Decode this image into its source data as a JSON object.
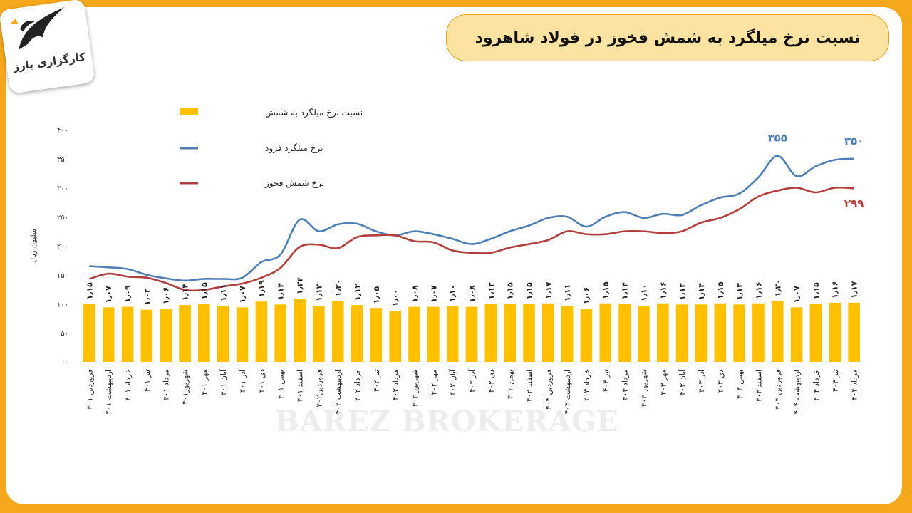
{
  "title": "نسبت نرخ میلگرد به شمش فخوز در فولاد شاهرود",
  "logo_text": "کارگزاری بارز",
  "watermark": "BAREZ BROKERAGE",
  "colors": {
    "bar": "#ffc000",
    "line_rebar": "#4e7fb5",
    "line_billet": "#b23f3c",
    "background": "#f6a81c",
    "title_box": "#fde3a2"
  },
  "chart_data": {
    "type": "bar",
    "title": "نسبت نرخ میلگرد به شمش فخوز در فولاد شاهرود",
    "ylabel": "میلیون ریال",
    "ylim": [
      0,
      400
    ],
    "yticks": [
      "۰",
      "۵۰",
      "۱۰۰",
      "۱۵۰",
      "۲۰۰",
      "۲۵۰",
      "۳۰۰",
      "۳۵۰",
      "۴۰۰"
    ],
    "grid": false,
    "legend_position": "top-left",
    "categories": [
      "فروردین ۴۰۱",
      "اردیبهشت ۴۰۱",
      "خرداد ۴۰۱",
      "تیر ۴۰۱",
      "مرداد ۴۰۱",
      "شهریور۴۰۱",
      "مهر ۴۰۱",
      "آبان ۴۰۱",
      "آذر ۴۰۱",
      "دی ۴۰۱",
      "بهمن ۴۰۱",
      "اسفند ۴۰۱",
      "فروردین۴۰۲",
      "اردیبهشت ۴۰۲",
      "خرداد ۴۰۲",
      "تیر ۴۰۲",
      "مرداد ۴۰۲",
      "شهریور ۴۰۲",
      "مهر ۴۰۲",
      "آبان ۴۰۲",
      "آذر ۴۰۲",
      "دی ۴۰۲",
      "بهمن ۴۰۲",
      "اسفند ۴۰۲",
      "فروردین ۴۰۳",
      "اردیبهشت ۴۰۳",
      "خرداد ۴۰۳",
      "تیر ۴۰۳",
      "مرداد ۴۰۳",
      "شهریور ۴۰۳",
      "مهر ۴۰۳",
      "آبان ۴۰۳",
      "آذر ۴۰۳",
      "دی ۴۰۳",
      "بهمن ۴۰۳",
      "اسفند ۴۰۳",
      "فروردین ۴۰۴",
      "اردیبهشت ۴۰۴",
      "خرداد ۴۰۴",
      "تیر ۴۰۴",
      "مرداد ۴۰۴"
    ],
    "series": [
      {
        "name": "نسبت نرخ میلگرد به شمش",
        "type": "bar",
        "values": [
          100,
          94,
          95,
          90,
          92,
          98,
          100,
          97,
          94,
          104,
          99,
          109,
          97,
          105,
          98,
          93,
          88,
          95,
          95,
          96,
          95,
          100,
          100,
          100,
          101,
          97,
          92,
          101,
          100,
          97,
          101,
          99,
          99,
          101,
          99,
          101,
          105,
          94,
          100,
          102,
          102
        ],
        "labels": [
          "۱٫۱۵",
          "۱٫۰۷",
          "۱٫۰۹",
          "۱٫۰۳",
          "۱٫۰۶",
          "۱٫۱۳",
          "۱٫۱۵",
          "۱٫۱۱",
          "۱٫۰۷",
          "۱٫۱۹",
          "۱٫۱۴",
          "۱٫۲۴",
          "۱٫۱۲",
          "۱٫۲۰",
          "۱٫۱۲",
          "۱٫۰۵",
          "۱٫۰۰",
          "۱٫۰۸",
          "۱٫۰۷",
          "۱٫۱۰",
          "۱٫۰۸",
          "۱٫۱۳",
          "۱٫۱۵",
          "۱٫۱۵",
          "۱٫۱۷",
          "۱٫۱۱",
          "۱٫۰۶",
          "۱٫۱۵",
          "۱٫۱۴",
          "۱٫۱۰",
          "۱٫۱۶",
          "۱٫۱۳",
          "۱٫۱۴",
          "۱٫۱۵",
          "۱٫۱۳",
          "۱٫۱۶",
          "۱٫۲۰",
          "۱٫۰۷",
          "۱٫۱۵",
          "۱٫۱۶",
          "۱٫۱۷"
        ]
      },
      {
        "name": "نرخ میلگرد فرود",
        "type": "line",
        "values": [
          165,
          163,
          160,
          150,
          144,
          140,
          143,
          143,
          145,
          172,
          185,
          245,
          225,
          237,
          238,
          225,
          218,
          225,
          220,
          212,
          203,
          212,
          225,
          235,
          248,
          250,
          233,
          250,
          258,
          248,
          255,
          253,
          270,
          283,
          290,
          318,
          355,
          320,
          337,
          348,
          350
        ]
      },
      {
        "name": "نرخ شمش فخوز",
        "type": "line",
        "values": [
          143,
          152,
          147,
          145,
          136,
          124,
          124,
          130,
          135,
          145,
          162,
          198,
          202,
          196,
          215,
          218,
          218,
          208,
          206,
          192,
          188,
          188,
          197,
          203,
          210,
          225,
          220,
          220,
          225,
          225,
          222,
          225,
          240,
          248,
          263,
          285,
          295,
          300,
          292,
          300,
          299
        ]
      }
    ],
    "annotations": [
      {
        "text": "۳۵۵",
        "series": "نرخ میلگرد فرود",
        "index": 36
      },
      {
        "text": "۳۵۰",
        "series": "نرخ میلگرد فرود",
        "index": 40
      },
      {
        "text": "۲۹۹",
        "series": "نرخ شمش فخوز",
        "index": 40
      }
    ]
  }
}
